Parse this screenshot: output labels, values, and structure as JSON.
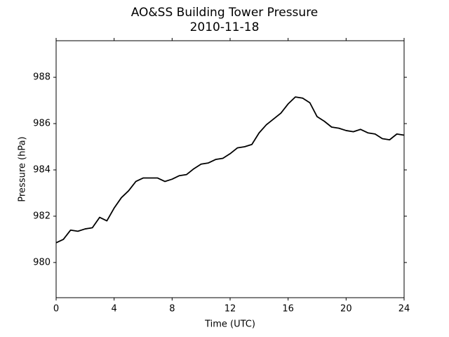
{
  "chart_data": {
    "type": "line",
    "title": "AO&SS Building Tower Pressure",
    "subtitle": "2010-11-18",
    "x_label": "Time (UTC)",
    "y_label": "Pressure (hPa)",
    "x": [
      0,
      0.5,
      1,
      1.5,
      2,
      2.5,
      3,
      3.5,
      4,
      4.5,
      5,
      5.5,
      6,
      6.5,
      7,
      7.5,
      8,
      8.5,
      9,
      9.5,
      10,
      10.5,
      11,
      11.5,
      12,
      12.5,
      13,
      13.5,
      14,
      14.5,
      15,
      15.5,
      16,
      16.5,
      17,
      17.5,
      18,
      18.5,
      19,
      19.5,
      20,
      20.5,
      21,
      21.5,
      22,
      22.5,
      23,
      23.5,
      24
    ],
    "series": [
      {
        "name": "Pressure",
        "color": "#000000",
        "values": [
          980.85,
          981.0,
          981.4,
          981.35,
          981.45,
          981.5,
          981.95,
          981.8,
          982.35,
          982.8,
          983.1,
          983.5,
          983.65,
          983.65,
          983.65,
          983.5,
          983.6,
          983.75,
          983.8,
          984.05,
          984.25,
          984.3,
          984.45,
          984.5,
          984.7,
          984.95,
          985.0,
          985.1,
          985.6,
          985.95,
          986.2,
          986.45,
          986.85,
          987.15,
          987.1,
          986.9,
          986.3,
          986.1,
          985.85,
          985.8,
          985.7,
          985.65,
          985.75,
          985.6,
          985.55,
          985.35,
          985.3,
          985.55,
          985.5
        ]
      }
    ],
    "xlim": [
      0,
      24
    ],
    "xticks": [
      0,
      4,
      8,
      12,
      16,
      20,
      24
    ],
    "ylim": [
      978.48,
      989.58
    ],
    "yticks": [
      980,
      982,
      984,
      986,
      988
    ],
    "grid": false
  }
}
